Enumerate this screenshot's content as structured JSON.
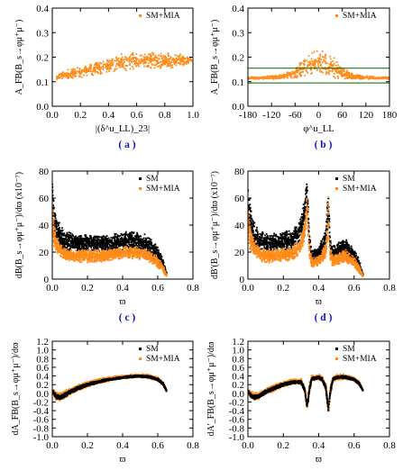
{
  "colors": {
    "sm": "#000000",
    "mia": "#ff8c1a",
    "band": "#006400",
    "panel_label": "#1010c8"
  },
  "chart_data": [
    {
      "panel": "a",
      "type": "scatter",
      "panel_label": "( a )",
      "ylabel": "A_FB(B_s→φμ⁺μ⁻)",
      "xlabel": "|(δ^u_LL)_23|",
      "xlim": [
        0,
        1
      ],
      "ylim": [
        0,
        0.4
      ],
      "xticks": [
        "0.0",
        "0.2",
        "0.4",
        "0.6",
        "0.8",
        "1.0"
      ],
      "yticks": [
        "0.0",
        "0.1",
        "0.2",
        "0.3",
        "0.4"
      ],
      "legend": [
        "SM+MIA"
      ],
      "legend_position": "top-right",
      "series": [
        {
          "name": "SM+MIA",
          "kind": "band",
          "x": [
            0.03,
            0.1,
            0.2,
            0.3,
            0.4,
            0.5,
            0.6,
            0.7,
            0.8,
            0.9,
            0.99
          ],
          "lo": [
            0.11,
            0.11,
            0.115,
            0.125,
            0.135,
            0.145,
            0.145,
            0.15,
            0.15,
            0.16,
            0.17
          ],
          "hi": [
            0.13,
            0.15,
            0.165,
            0.18,
            0.2,
            0.215,
            0.225,
            0.225,
            0.22,
            0.215,
            0.2
          ]
        }
      ]
    },
    {
      "panel": "b",
      "type": "scatter",
      "panel_label": "( b )",
      "ylabel": "A_FB(B_s→φμ⁺μ⁻)",
      "xlabel": "φ^u_LL",
      "xlim": [
        -180,
        180
      ],
      "ylim": [
        0,
        0.4
      ],
      "xticks": [
        "-180",
        "-120",
        "-60",
        "0",
        "60",
        "120",
        "180"
      ],
      "yticks": [
        "0.0",
        "0.1",
        "0.2",
        "0.3",
        "0.4"
      ],
      "legend": [
        "SM+MIA"
      ],
      "legend_position": "top-right",
      "hlines": [
        0.095,
        0.155
      ],
      "series": [
        {
          "name": "SM+MIA",
          "kind": "band",
          "x": [
            -180,
            -150,
            -120,
            -90,
            -60,
            -40,
            -20,
            0,
            20,
            40,
            60,
            90,
            120,
            150,
            180
          ],
          "lo": [
            0.11,
            0.11,
            0.11,
            0.11,
            0.11,
            0.11,
            0.12,
            0.13,
            0.12,
            0.11,
            0.11,
            0.11,
            0.11,
            0.11,
            0.11
          ],
          "hi": [
            0.12,
            0.12,
            0.125,
            0.13,
            0.16,
            0.2,
            0.22,
            0.24,
            0.22,
            0.2,
            0.16,
            0.13,
            0.125,
            0.12,
            0.12
          ]
        }
      ]
    },
    {
      "panel": "c",
      "type": "scatter",
      "panel_label": "( c )",
      "ylabel": "dB(B_s→φμ⁺μ⁻)/dϖ (x10⁻⁷)",
      "xlabel": "ϖ",
      "xlim": [
        0,
        0.8
      ],
      "ylim": [
        0,
        80
      ],
      "xticks": [
        "0.0",
        "0.2",
        "0.4",
        "0.6",
        "0.8"
      ],
      "yticks": [
        "0",
        "20",
        "40",
        "60",
        "80"
      ],
      "legend": [
        "SM",
        "SM+MIA"
      ],
      "legend_position": "top-right",
      "series": [
        {
          "name": "SM",
          "kind": "band",
          "x": [
            0.0,
            0.01,
            0.02,
            0.04,
            0.06,
            0.1,
            0.15,
            0.2,
            0.25,
            0.3,
            0.35,
            0.4,
            0.45,
            0.5,
            0.55,
            0.6,
            0.63,
            0.65
          ],
          "lo": [
            35,
            30,
            26,
            22,
            20,
            20,
            20,
            20,
            20,
            20,
            20,
            21,
            21,
            20,
            17,
            11,
            7,
            2
          ],
          "hi": [
            80,
            65,
            50,
            42,
            38,
            35,
            33,
            33,
            33,
            33,
            34,
            35,
            36,
            35,
            32,
            25,
            15,
            5
          ]
        },
        {
          "name": "SM+MIA",
          "kind": "band",
          "x": [
            0.0,
            0.01,
            0.02,
            0.04,
            0.06,
            0.1,
            0.15,
            0.2,
            0.25,
            0.3,
            0.35,
            0.4,
            0.45,
            0.5,
            0.55,
            0.6,
            0.63,
            0.65
          ],
          "lo": [
            28,
            22,
            18,
            16,
            14,
            13,
            12,
            12,
            12,
            13,
            14,
            15,
            15,
            14,
            12,
            8,
            5,
            1
          ],
          "hi": [
            60,
            45,
            35,
            28,
            24,
            22,
            22,
            22,
            22,
            22,
            23,
            24,
            25,
            24,
            22,
            17,
            11,
            3
          ]
        }
      ]
    },
    {
      "panel": "d",
      "type": "scatter",
      "panel_label": "( d )",
      "ylabel": "dB'(B_s→φμ⁺μ⁻)/dϖ (x10⁻⁷)",
      "xlabel": "ϖ",
      "xlim": [
        0,
        0.8
      ],
      "ylim": [
        0,
        80
      ],
      "xticks": [
        "0.0",
        "0.2",
        "0.4",
        "0.6",
        "0.8"
      ],
      "yticks": [
        "0",
        "20",
        "40",
        "60",
        "80"
      ],
      "legend": [
        "SM",
        "SM+MIA"
      ],
      "legend_position": "top-right",
      "series": [
        {
          "name": "SM",
          "kind": "band",
          "x": [
            0.0,
            0.01,
            0.02,
            0.04,
            0.06,
            0.1,
            0.15,
            0.2,
            0.25,
            0.28,
            0.3,
            0.32,
            0.335,
            0.345,
            0.36,
            0.38,
            0.4,
            0.42,
            0.44,
            0.455,
            0.465,
            0.48,
            0.5,
            0.55,
            0.6,
            0.63,
            0.65
          ],
          "lo": [
            35,
            30,
            26,
            22,
            20,
            20,
            20,
            21,
            22,
            25,
            30,
            38,
            55,
            25,
            12,
            14,
            15,
            18,
            22,
            35,
            18,
            14,
            16,
            18,
            12,
            7,
            2
          ],
          "hi": [
            80,
            65,
            50,
            42,
            38,
            35,
            34,
            35,
            37,
            41,
            48,
            60,
            80,
            40,
            22,
            23,
            25,
            30,
            38,
            80,
            32,
            25,
            27,
            30,
            24,
            14,
            4
          ]
        },
        {
          "name": "SM+MIA",
          "kind": "band",
          "x": [
            0.0,
            0.01,
            0.02,
            0.04,
            0.06,
            0.1,
            0.15,
            0.2,
            0.25,
            0.28,
            0.3,
            0.32,
            0.335,
            0.345,
            0.36,
            0.38,
            0.4,
            0.42,
            0.44,
            0.455,
            0.465,
            0.48,
            0.5,
            0.55,
            0.6,
            0.63,
            0.65
          ],
          "lo": [
            28,
            22,
            18,
            15,
            13,
            12,
            12,
            13,
            14,
            16,
            20,
            28,
            45,
            18,
            8,
            9,
            10,
            12,
            15,
            28,
            12,
            9,
            10,
            12,
            8,
            4,
            1
          ],
          "hi": [
            60,
            45,
            35,
            28,
            24,
            22,
            22,
            23,
            25,
            28,
            33,
            42,
            65,
            30,
            16,
            16,
            18,
            22,
            28,
            65,
            24,
            18,
            19,
            22,
            17,
            10,
            3
          ]
        }
      ]
    },
    {
      "panel": "e",
      "type": "scatter",
      "panel_label": "( e )",
      "ylabel": "dA_FB(B_s→φμ⁺μ⁻)/dϖ",
      "xlabel": "ϖ",
      "xlim": [
        0,
        0.8
      ],
      "ylim": [
        -1.0,
        1.2
      ],
      "xticks": [
        "0.0",
        "0.2",
        "0.4",
        "0.6",
        "0.8"
      ],
      "yticks": [
        "-1.0",
        "-0.8",
        "-0.6",
        "-0.4",
        "-0.2",
        "0.0",
        "0.2",
        "0.4",
        "0.6",
        "0.8",
        "1.0",
        "1.2"
      ],
      "legend": [
        "SM",
        "SM+MIA"
      ],
      "legend_position": "top-right",
      "series": [
        {
          "name": "SM+MIA",
          "kind": "band",
          "x": [
            0.0,
            0.02,
            0.04,
            0.06,
            0.08,
            0.1,
            0.15,
            0.2,
            0.25,
            0.3,
            0.35,
            0.4,
            0.45,
            0.5,
            0.55,
            0.6,
            0.63,
            0.65
          ],
          "lo": [
            -0.02,
            -0.15,
            -0.18,
            -0.15,
            -0.1,
            -0.05,
            0.05,
            0.14,
            0.2,
            0.25,
            0.3,
            0.33,
            0.35,
            0.36,
            0.34,
            0.28,
            0.18,
            0.03
          ],
          "hi": [
            0.12,
            0.05,
            0.02,
            0.04,
            0.08,
            0.12,
            0.21,
            0.28,
            0.33,
            0.37,
            0.4,
            0.42,
            0.44,
            0.45,
            0.44,
            0.38,
            0.28,
            0.1
          ]
        },
        {
          "name": "SM",
          "kind": "band",
          "x": [
            0.0,
            0.02,
            0.04,
            0.06,
            0.08,
            0.1,
            0.15,
            0.2,
            0.25,
            0.3,
            0.35,
            0.4,
            0.45,
            0.5,
            0.55,
            0.6,
            0.63,
            0.65
          ],
          "lo": [
            0.04,
            -0.12,
            -0.15,
            -0.12,
            -0.07,
            -0.02,
            0.08,
            0.16,
            0.22,
            0.27,
            0.31,
            0.34,
            0.36,
            0.37,
            0.35,
            0.29,
            0.19,
            0.04
          ],
          "hi": [
            0.08,
            -0.02,
            -0.04,
            -0.02,
            0.03,
            0.08,
            0.17,
            0.24,
            0.29,
            0.33,
            0.36,
            0.39,
            0.41,
            0.42,
            0.41,
            0.35,
            0.25,
            0.08
          ]
        }
      ]
    },
    {
      "panel": "f",
      "type": "scatter",
      "panel_label": "( f )",
      "ylabel": "dA'_FB(B_s→φμ⁺μ⁻)/dϖ",
      "xlabel": "ϖ",
      "xlim": [
        0,
        0.8
      ],
      "ylim": [
        -1.0,
        1.2
      ],
      "xticks": [
        "0.0",
        "0.2",
        "0.4",
        "0.6",
        "0.8"
      ],
      "yticks": [
        "-1.0",
        "-0.8",
        "-0.6",
        "-0.4",
        "-0.2",
        "0.0",
        "0.2",
        "0.4",
        "0.6",
        "0.8",
        "1.0",
        "1.2"
      ],
      "legend": [
        "SM",
        "SM+MIA"
      ],
      "legend_position": "top-right",
      "series": [
        {
          "name": "SM+MIA",
          "kind": "band",
          "x": [
            0.0,
            0.02,
            0.04,
            0.06,
            0.08,
            0.1,
            0.15,
            0.2,
            0.25,
            0.3,
            0.32,
            0.335,
            0.345,
            0.36,
            0.38,
            0.4,
            0.42,
            0.44,
            0.455,
            0.465,
            0.48,
            0.5,
            0.55,
            0.6,
            0.63,
            0.65
          ],
          "lo": [
            -0.02,
            -0.15,
            -0.18,
            -0.15,
            -0.1,
            -0.05,
            0.05,
            0.14,
            0.2,
            0.2,
            0.0,
            -0.4,
            -0.1,
            0.28,
            0.3,
            0.32,
            0.25,
            0.05,
            -0.45,
            -0.1,
            0.25,
            0.3,
            0.32,
            0.28,
            0.18,
            0.03
          ],
          "hi": [
            0.12,
            0.05,
            0.02,
            0.04,
            0.08,
            0.12,
            0.21,
            0.28,
            0.33,
            0.35,
            0.2,
            -0.2,
            0.2,
            0.42,
            0.42,
            0.44,
            0.4,
            0.25,
            -0.3,
            0.15,
            0.4,
            0.44,
            0.44,
            0.38,
            0.28,
            0.1
          ]
        },
        {
          "name": "SM",
          "kind": "band",
          "x": [
            0.0,
            0.02,
            0.04,
            0.06,
            0.08,
            0.1,
            0.15,
            0.2,
            0.25,
            0.3,
            0.32,
            0.335,
            0.345,
            0.36,
            0.38,
            0.4,
            0.42,
            0.44,
            0.455,
            0.465,
            0.48,
            0.5,
            0.55,
            0.6,
            0.63,
            0.65
          ],
          "lo": [
            0.04,
            -0.12,
            -0.15,
            -0.12,
            -0.07,
            -0.02,
            0.08,
            0.16,
            0.22,
            0.22,
            0.05,
            -0.38,
            -0.05,
            0.3,
            0.32,
            0.34,
            0.27,
            0.08,
            -0.43,
            -0.05,
            0.28,
            0.33,
            0.34,
            0.29,
            0.19,
            0.04
          ],
          "hi": [
            0.08,
            -0.02,
            -0.04,
            -0.02,
            0.03,
            0.08,
            0.17,
            0.24,
            0.29,
            0.3,
            0.15,
            -0.25,
            0.1,
            0.38,
            0.38,
            0.4,
            0.36,
            0.2,
            -0.35,
            0.1,
            0.36,
            0.4,
            0.41,
            0.35,
            0.25,
            0.08
          ]
        }
      ]
    }
  ]
}
